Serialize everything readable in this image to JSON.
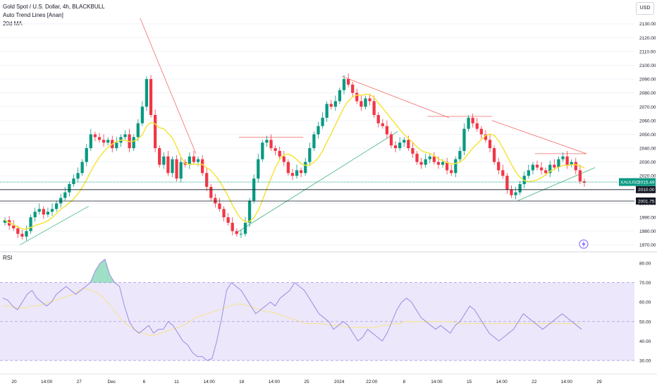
{
  "header": {
    "symbol_title": "Gold Spot / U.S. Dollar, 4h, BLACKBULL",
    "indicator_1": "Auto Trend Lines [Anan]",
    "indicator_2": "20d MA",
    "currency_button": "USD"
  },
  "price_pane": {
    "axis_ticks": [
      "2130.00",
      "2120.00",
      "2110.00",
      "2100.00",
      "2090.00",
      "2080.00",
      "2070.00",
      "2060.00",
      "2050.00",
      "2040.00",
      "2030.00",
      "2020.00",
      "2010.00",
      "2000.00",
      "1990.00",
      "1980.00",
      "1970.00"
    ],
    "tag_symbol": "XAUUSD",
    "tag_price": "2015.49",
    "level_1": "2010.00",
    "level_2": "2001.75"
  },
  "rsi_pane": {
    "label": "RSI",
    "axis_ticks": [
      "80.00",
      "70.00",
      "60.00",
      "50.00",
      "40.00",
      "30.00"
    ],
    "upper_band": 70,
    "lower_band": 30
  },
  "time_axis": [
    "20",
    "14:00",
    "27",
    "Dec",
    "6",
    "11",
    "14:00",
    "18",
    "14:00",
    "25",
    "2024",
    "22:00",
    "8",
    "14:00",
    "15",
    "14:00",
    "22",
    "14:00",
    "29"
  ],
  "colors": {
    "up": "#089981",
    "down": "#f23645",
    "ma": "#f5e43a",
    "trend_red": "#f26b6b",
    "trend_green": "#3fb27f",
    "rsi_line": "#9b8ee0",
    "rsi_ma": "#f5e48a",
    "rsi_band": "#ede7fb",
    "tag_green": "#089981",
    "tag_dark": "#131722"
  },
  "chart_data": [
    {
      "type": "candlestick",
      "title": "Gold Spot / U.S. Dollar, 4h, BLACKBULL",
      "ylim": [
        1966,
        2137
      ],
      "close_series": [
        1988,
        1984,
        1982,
        1978,
        1976,
        1980,
        1990,
        1994,
        1996,
        1992,
        1994,
        1996,
        2000,
        2004,
        2008,
        2014,
        2018,
        2022,
        2030,
        2040,
        2050,
        2048,
        2046,
        2044,
        2046,
        2040,
        2044,
        2048,
        2050,
        2040,
        2048,
        2058,
        2070,
        2090,
        2064,
        2040,
        2028,
        2034,
        2022,
        2032,
        2018,
        2030,
        2028,
        2034,
        2030,
        2032,
        2022,
        2012,
        2004,
        2000,
        1996,
        1990,
        1986,
        1980,
        1978,
        1978,
        1986,
        2002,
        2018,
        2032,
        2044,
        2046,
        2040,
        2038,
        2034,
        2030,
        2022,
        2020,
        2024,
        2022,
        2030,
        2040,
        2050,
        2056,
        2062,
        2072,
        2070,
        2074,
        2082,
        2090,
        2086,
        2080,
        2074,
        2070,
        2076,
        2074,
        2064,
        2058,
        2056,
        2050,
        2042,
        2040,
        2044,
        2046,
        2040,
        2036,
        2030,
        2028,
        2032,
        2034,
        2030,
        2028,
        2030,
        2024,
        2022,
        2032,
        2038,
        2054,
        2062,
        2058,
        2054,
        2050,
        2046,
        2040,
        2030,
        2024,
        2020,
        2010,
        2006,
        2008,
        2014,
        2020,
        2024,
        2028,
        2026,
        2024,
        2022,
        2028,
        2026,
        2032,
        2034,
        2028,
        2030,
        2024,
        2016,
        2015
      ],
      "moving_average": {
        "name": "20d MA"
      },
      "price_labels": [
        "XAUUSD 2015.49",
        "2010.00",
        "2001.75"
      ],
      "x_tick_labels": [
        "20",
        "14:00",
        "27",
        "Dec",
        "6",
        "11",
        "14:00",
        "18",
        "14:00",
        "25",
        "2024",
        "22:00",
        "8",
        "14:00",
        "15",
        "14:00",
        "22",
        "14:00",
        "29"
      ]
    },
    {
      "type": "line",
      "title": "RSI",
      "ylim": [
        26,
        84
      ],
      "upper_band": 70,
      "middle_line": 50,
      "lower_band": 30,
      "values": [
        62,
        61,
        58,
        56,
        60,
        64,
        66,
        62,
        60,
        58,
        60,
        64,
        66,
        68,
        66,
        64,
        66,
        68,
        70,
        76,
        80,
        82,
        74,
        70,
        68,
        58,
        50,
        46,
        44,
        46,
        48,
        44,
        46,
        46,
        50,
        48,
        44,
        40,
        38,
        34,
        32,
        32,
        30,
        31,
        40,
        52,
        66,
        70,
        68,
        66,
        62,
        58,
        54,
        56,
        58,
        60,
        58,
        62,
        64,
        66,
        70,
        68,
        66,
        62,
        58,
        54,
        52,
        50,
        46,
        48,
        50,
        48,
        44,
        40,
        42,
        46,
        44,
        42,
        40,
        44,
        50,
        56,
        60,
        62,
        60,
        56,
        52,
        50,
        48,
        46,
        48,
        46,
        44,
        48,
        50,
        54,
        58,
        56,
        52,
        48,
        44,
        42,
        40,
        42,
        44,
        46,
        50,
        54,
        52,
        50,
        48,
        46,
        48,
        50,
        52,
        54,
        52,
        50,
        48,
        46
      ],
      "moving_average": [
        58,
        58,
        57,
        57,
        57,
        58,
        58,
        59,
        60,
        61,
        62,
        63,
        64,
        66,
        67,
        66,
        65,
        63,
        60,
        56,
        52,
        49,
        47,
        45,
        44,
        43,
        43,
        44,
        45,
        46,
        47,
        48,
        50,
        52,
        53,
        54,
        55,
        56,
        57,
        58,
        59,
        59,
        58,
        57,
        56,
        55,
        55,
        54,
        53,
        52,
        51,
        50,
        49,
        49,
        49,
        49,
        48,
        48,
        48,
        47,
        47,
        47,
        47,
        47,
        47,
        48,
        48,
        49,
        49,
        50,
        50,
        50,
        50,
        50,
        50,
        50,
        50,
        50,
        49,
        49,
        49,
        49,
        49,
        49,
        49,
        49,
        49,
        49,
        49,
        49,
        49,
        49,
        49,
        49,
        49,
        49,
        49,
        49,
        49,
        49
      ],
      "y_tick_labels": [
        "80.00",
        "70.00",
        "60.00",
        "50.00",
        "40.00",
        "30.00"
      ]
    }
  ]
}
